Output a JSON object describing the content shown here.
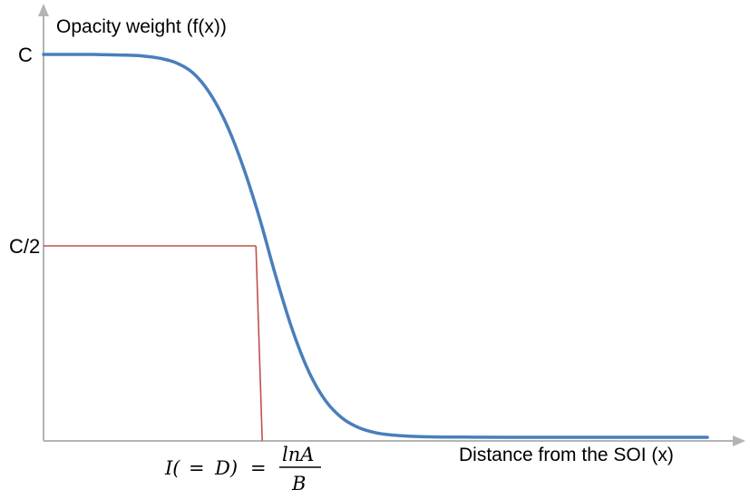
{
  "chart_data": {
    "type": "line",
    "title": "",
    "ylabel": "Opacity weight (f(x))",
    "xlabel": "Distance from the SOI (x)",
    "y_ticks": [
      "C",
      "C/2"
    ],
    "y_tick_values": [
      1.0,
      0.5
    ],
    "x_annotation": {
      "lhs": "I(",
      "eq1": "=",
      "mid": "D)",
      "eq2": "=",
      "numerator": "lnA",
      "denominator": "B"
    },
    "xlim": [
      0,
      10
    ],
    "ylim": [
      0,
      1.05
    ],
    "series": [
      {
        "color": "#4a7ebb",
        "x": [
          0,
          0.25,
          0.5,
          0.75,
          1.0,
          1.25,
          1.5,
          1.75,
          2.0,
          2.25,
          2.5,
          2.75,
          3.0,
          3.25,
          3.5,
          3.75,
          4.0,
          4.25,
          4.5,
          4.75,
          5.0,
          5.25,
          5.5,
          5.75,
          6.0,
          6.5,
          7.0,
          7.5,
          8.0,
          8.5,
          9.0,
          9.5,
          10.0
        ],
        "y": [
          1.0,
          1.0,
          1.0,
          1.0,
          0.999,
          0.998,
          0.996,
          0.99,
          0.978,
          0.952,
          0.9,
          0.82,
          0.71,
          0.575,
          0.42,
          0.28,
          0.17,
          0.095,
          0.05,
          0.025,
          0.012,
          0.006,
          0.003,
          0.0015,
          0.0008,
          0.0003,
          0.0001,
          0.0,
          0.0,
          0.0,
          0.0,
          0.0,
          0.0
        ]
      }
    ],
    "reference_lines": {
      "color": "#c0504d",
      "x": 3.2,
      "y": 0.5
    },
    "axis_color": "#b4b4b4",
    "grid": false,
    "legend": "none"
  }
}
